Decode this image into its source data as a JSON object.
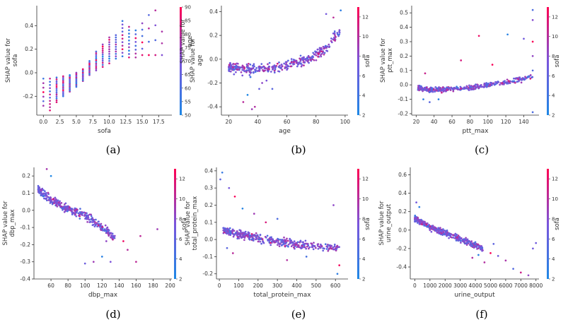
{
  "figure": {
    "captions": [
      "(a)",
      "(b)",
      "(c)",
      "(d)",
      "(e)",
      "(f)"
    ],
    "colorscale": [
      "#1e88e5",
      "#7a55dc",
      "#ff0052"
    ]
  },
  "chart_data": [
    {
      "type": "scatter",
      "id": "a",
      "xlabel": "sofa",
      "ylabel_lines": [
        "SHAP value for",
        "sofa"
      ],
      "colorbar_label": "SHAP value for age",
      "xlim": [
        -1,
        19.5
      ],
      "ylim": [
        -0.36,
        0.57
      ],
      "xticks": [
        0.0,
        2.5,
        5.0,
        7.5,
        10.0,
        12.5,
        15.0,
        17.5
      ],
      "xtick_labels": [
        "0.0",
        "2.5",
        "5.0",
        "7.5",
        "10.0",
        "12.5",
        "15.0",
        "17.5"
      ],
      "yticks": [
        -0.2,
        0.0,
        0.2,
        0.4
      ],
      "ytick_labels": [
        "-0.2",
        "0.0",
        "0.2",
        "0.4"
      ],
      "cbar_range": [
        50,
        90
      ],
      "cbar_ticks": [
        50,
        55,
        60,
        65,
        70,
        75,
        80,
        85,
        90
      ],
      "cbar_tick_labels": [
        "50",
        "55",
        "60",
        "65",
        "70",
        "75",
        "80",
        "85",
        "90"
      ],
      "columns": [
        {
          "x": 0,
          "y_min": -0.28,
          "y_max": -0.05,
          "n": 7
        },
        {
          "x": 1,
          "y_min": -0.32,
          "y_max": -0.05,
          "n": 11
        },
        {
          "x": 2,
          "y_min": -0.25,
          "y_max": -0.04,
          "n": 14
        },
        {
          "x": 3,
          "y_min": -0.2,
          "y_max": -0.03,
          "n": 14
        },
        {
          "x": 4,
          "y_min": -0.16,
          "y_max": -0.02,
          "n": 14
        },
        {
          "x": 5,
          "y_min": -0.12,
          "y_max": 0.0,
          "n": 13
        },
        {
          "x": 6,
          "y_min": -0.07,
          "y_max": 0.03,
          "n": 12
        },
        {
          "x": 7,
          "y_min": -0.02,
          "y_max": 0.1,
          "n": 12
        },
        {
          "x": 8,
          "y_min": 0.02,
          "y_max": 0.18,
          "n": 12
        },
        {
          "x": 9,
          "y_min": 0.05,
          "y_max": 0.24,
          "n": 12
        },
        {
          "x": 10,
          "y_min": 0.08,
          "y_max": 0.3,
          "n": 12
        },
        {
          "x": 11,
          "y_min": 0.12,
          "y_max": 0.32,
          "n": 11
        },
        {
          "x": 12,
          "y_min": 0.14,
          "y_max": 0.44,
          "n": 11
        },
        {
          "x": 13,
          "y_min": 0.13,
          "y_max": 0.39,
          "n": 10
        },
        {
          "x": 14,
          "y_min": 0.13,
          "y_max": 0.36,
          "n": 8
        },
        {
          "x": 15,
          "y_min": 0.15,
          "y_max": 0.42,
          "n": 6
        },
        {
          "x": 16,
          "y_min": 0.15,
          "y_max": 0.49,
          "n": 4
        },
        {
          "x": 17,
          "y_min": 0.15,
          "y_max": 0.53,
          "n": 4
        },
        {
          "x": 18,
          "y_min": 0.15,
          "y_max": 0.35,
          "n": 3
        }
      ]
    },
    {
      "type": "scatter",
      "id": "b",
      "xlabel": "age",
      "ylabel_lines": [
        "SHAP value for",
        "age"
      ],
      "colorbar_label": "sofa",
      "xlim": [
        15,
        102
      ],
      "ylim": [
        -0.47,
        0.45
      ],
      "xticks": [
        20,
        40,
        60,
        80,
        100
      ],
      "xtick_labels": [
        "20",
        "40",
        "60",
        "80",
        "100"
      ],
      "yticks": [
        -0.4,
        -0.2,
        0.0,
        0.2,
        0.4
      ],
      "ytick_labels": [
        "-0.4",
        "-0.2",
        "0.0",
        "0.2",
        "0.4"
      ],
      "cbar_range": [
        2,
        13
      ],
      "cbar_ticks": [
        2,
        4,
        6,
        8,
        10,
        12
      ],
      "cbar_tick_labels": [
        "2",
        "4",
        "6",
        "8",
        "10",
        "12"
      ],
      "trend": [
        [
          20,
          -0.07
        ],
        [
          35,
          -0.09
        ],
        [
          50,
          -0.07
        ],
        [
          60,
          -0.05
        ],
        [
          70,
          -0.02
        ],
        [
          80,
          0.04
        ],
        [
          88,
          0.1
        ],
        [
          92,
          0.18
        ],
        [
          98,
          0.25
        ]
      ],
      "spread": 0.06,
      "n": 380,
      "x_range": [
        20,
        97
      ],
      "outliers": [
        [
          30,
          -0.36
        ],
        [
          33,
          -0.3
        ],
        [
          36,
          -0.42
        ],
        [
          38,
          -0.4
        ],
        [
          41,
          -0.25
        ],
        [
          43,
          -0.2
        ],
        [
          35,
          -0.15
        ],
        [
          46,
          -0.18
        ],
        [
          50,
          -0.25
        ],
        [
          87,
          0.38
        ],
        [
          97,
          0.41
        ],
        [
          92,
          0.35
        ]
      ]
    },
    {
      "type": "scatter",
      "id": "c",
      "xlabel": "ptt_max",
      "ylabel_lines": [
        "SHAP value for",
        "ptt_max"
      ],
      "colorbar_label": "sofa",
      "xlim": [
        15,
        157
      ],
      "ylim": [
        -0.21,
        0.55
      ],
      "xticks": [
        20,
        40,
        60,
        80,
        100,
        120,
        140
      ],
      "xtick_labels": [
        "20",
        "40",
        "60",
        "80",
        "100",
        "120",
        "140"
      ],
      "yticks": [
        -0.2,
        -0.1,
        0.0,
        0.1,
        0.2,
        0.3,
        0.4,
        0.5
      ],
      "ytick_labels": [
        "-0.2",
        "-0.1",
        "0.0",
        "0.1",
        "0.2",
        "0.3",
        "0.4",
        "0.5"
      ],
      "cbar_range": [
        2,
        13
      ],
      "cbar_ticks": [
        2,
        4,
        6,
        8,
        10,
        12
      ],
      "cbar_tick_labels": [
        "2",
        "4",
        "6",
        "8",
        "10",
        "12"
      ],
      "trend": [
        [
          22,
          -0.02
        ],
        [
          30,
          -0.03
        ],
        [
          40,
          -0.035
        ],
        [
          60,
          -0.03
        ],
        [
          80,
          -0.02
        ],
        [
          100,
          0.0
        ],
        [
          120,
          0.02
        ],
        [
          140,
          0.04
        ],
        [
          150,
          0.06
        ]
      ],
      "spread": 0.025,
      "n": 360,
      "x_range": [
        22,
        150
      ],
      "outliers": [
        [
          90,
          0.34
        ],
        [
          122,
          0.35
        ],
        [
          140,
          0.32
        ],
        [
          150,
          0.52
        ],
        [
          150,
          0.45
        ],
        [
          150,
          0.3
        ],
        [
          150,
          0.2
        ],
        [
          150,
          0.1
        ],
        [
          150,
          -0.19
        ],
        [
          70,
          0.17
        ],
        [
          105,
          0.14
        ],
        [
          30,
          0.08
        ],
        [
          28,
          -0.1
        ],
        [
          35,
          -0.12
        ],
        [
          45,
          -0.1
        ]
      ]
    },
    {
      "type": "scatter",
      "id": "d",
      "xlabel": "dbp_max",
      "ylabel_lines": [
        "SHAP value for",
        "dbp_max"
      ],
      "colorbar_label": "sofa",
      "xlim": [
        40,
        202
      ],
      "ylim": [
        -0.4,
        0.25
      ],
      "xticks": [
        60,
        80,
        100,
        120,
        140,
        160,
        180,
        200
      ],
      "xtick_labels": [
        "60",
        "80",
        "100",
        "120",
        "140",
        "160",
        "180",
        "200"
      ],
      "yticks": [
        -0.4,
        -0.3,
        -0.2,
        -0.1,
        0.0,
        0.1,
        0.2
      ],
      "ytick_labels": [
        "-0.4",
        "-0.3",
        "-0.2",
        "-0.1",
        "0.0",
        "0.1",
        "0.2"
      ],
      "cbar_range": [
        2,
        13
      ],
      "cbar_ticks": [
        2,
        4,
        6,
        8,
        10,
        12
      ],
      "cbar_tick_labels": [
        "2",
        "4",
        "6",
        "8",
        "10",
        "12"
      ],
      "trend": [
        [
          45,
          0.12
        ],
        [
          55,
          0.08
        ],
        [
          65,
          0.05
        ],
        [
          75,
          0.02
        ],
        [
          85,
          0.0
        ],
        [
          95,
          -0.02
        ],
        [
          105,
          -0.05
        ],
        [
          115,
          -0.08
        ],
        [
          125,
          -0.12
        ],
        [
          135,
          -0.16
        ],
        [
          145,
          -0.2
        ]
      ],
      "spread": 0.035,
      "n": 360,
      "x_range": [
        45,
        135
      ],
      "outliers": [
        [
          55,
          0.24
        ],
        [
          60,
          0.2
        ],
        [
          100,
          -0.31
        ],
        [
          110,
          -0.3
        ],
        [
          120,
          -0.27
        ],
        [
          130,
          -0.3
        ],
        [
          150,
          -0.23
        ],
        [
          160,
          -0.3
        ],
        [
          165,
          -0.15
        ],
        [
          185,
          -0.11
        ],
        [
          145,
          -0.18
        ],
        [
          125,
          -0.18
        ]
      ]
    },
    {
      "type": "scatter",
      "id": "e",
      "xlabel": "total_protein_max",
      "ylabel_lines": [
        "SHAP value for",
        "total_protein_max"
      ],
      "colorbar_label": "sofa",
      "xlim": [
        -15,
        665
      ],
      "ylim": [
        -0.23,
        0.42
      ],
      "xticks": [
        0,
        100,
        200,
        300,
        400,
        500,
        600
      ],
      "xtick_labels": [
        "0",
        "100",
        "200",
        "300",
        "400",
        "500",
        "600"
      ],
      "yticks": [
        -0.2,
        -0.1,
        0.0,
        0.1,
        0.2,
        0.3,
        0.4
      ],
      "ytick_labels": [
        "-0.2",
        "-0.1",
        "0.0",
        "0.1",
        "0.2",
        "0.3",
        "0.4"
      ],
      "cbar_range": [
        2,
        13
      ],
      "cbar_ticks": [
        2,
        4,
        6,
        8,
        10,
        12
      ],
      "cbar_tick_labels": [
        "2",
        "4",
        "6",
        "8",
        "10",
        "12"
      ],
      "trend": [
        [
          20,
          0.06
        ],
        [
          60,
          0.04
        ],
        [
          100,
          0.03
        ],
        [
          200,
          0.01
        ],
        [
          300,
          -0.01
        ],
        [
          400,
          -0.03
        ],
        [
          500,
          -0.04
        ],
        [
          620,
          -0.05
        ]
      ],
      "spread": 0.035,
      "n": 400,
      "x_range": [
        20,
        620
      ],
      "outliers": [
        [
          5,
          0.35
        ],
        [
          15,
          0.39
        ],
        [
          50,
          0.3
        ],
        [
          80,
          0.25
        ],
        [
          120,
          0.18
        ],
        [
          180,
          0.15
        ],
        [
          240,
          0.1
        ],
        [
          300,
          0.12
        ],
        [
          590,
          0.2
        ],
        [
          610,
          -0.2
        ],
        [
          620,
          -0.15
        ],
        [
          40,
          -0.05
        ],
        [
          70,
          -0.08
        ],
        [
          350,
          -0.12
        ],
        [
          450,
          -0.1
        ]
      ]
    },
    {
      "type": "scatter",
      "id": "f",
      "xlabel": "urine_output",
      "ylabel_lines": [
        "SHAP value for",
        "urine_output"
      ],
      "colorbar_label": "sofa",
      "xlim": [
        -300,
        8200
      ],
      "ylim": [
        -0.53,
        0.68
      ],
      "xticks": [
        0,
        1000,
        2000,
        3000,
        4000,
        5000,
        6000,
        7000,
        8000
      ],
      "xtick_labels": [
        "0",
        "1000",
        "2000",
        "3000",
        "4000",
        "5000",
        "6000",
        "7000",
        "8000"
      ],
      "yticks": [
        -0.4,
        -0.2,
        0.0,
        0.2,
        0.4,
        0.6
      ],
      "ytick_labels": [
        "-0.4",
        "-0.2",
        "0.0",
        "0.2",
        "0.4",
        "0.6"
      ],
      "cbar_range": [
        2,
        13
      ],
      "cbar_ticks": [
        2,
        4,
        6,
        8,
        10,
        12
      ],
      "cbar_tick_labels": [
        "2",
        "4",
        "6",
        "8",
        "10",
        "12"
      ],
      "trend": [
        [
          0,
          0.12
        ],
        [
          500,
          0.08
        ],
        [
          1000,
          0.03
        ],
        [
          1500,
          0.0
        ],
        [
          2000,
          -0.03
        ],
        [
          2500,
          -0.06
        ],
        [
          3000,
          -0.1
        ],
        [
          3500,
          -0.13
        ],
        [
          4000,
          -0.17
        ],
        [
          4500,
          -0.2
        ]
      ],
      "spread": 0.045,
      "n": 420,
      "x_range": [
        0,
        4500
      ],
      "outliers": [
        [
          100,
          0.3
        ],
        [
          300,
          0.25
        ],
        [
          4200,
          -0.27
        ],
        [
          5000,
          -0.25
        ],
        [
          5500,
          -0.28
        ],
        [
          6000,
          -0.33
        ],
        [
          6500,
          -0.42
        ],
        [
          7000,
          -0.46
        ],
        [
          7500,
          -0.49
        ],
        [
          7800,
          -0.2
        ],
        [
          8000,
          -0.14
        ],
        [
          3800,
          -0.3
        ],
        [
          4600,
          -0.35
        ],
        [
          5200,
          -0.15
        ]
      ]
    }
  ]
}
